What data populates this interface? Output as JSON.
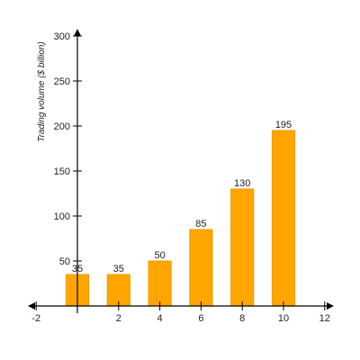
{
  "chart_data": {
    "type": "bar",
    "title": "",
    "xlabel": "",
    "ylabel": "Trading volume ($ billion)",
    "x": [
      0,
      2,
      4,
      6,
      8,
      10
    ],
    "values": [
      35,
      35,
      50,
      85,
      130,
      195
    ],
    "bar_width": 1.1,
    "xlim": [
      -2,
      12
    ],
    "ylim": [
      0,
      300
    ],
    "x_ticks": [
      -2,
      2,
      4,
      6,
      8,
      10,
      12
    ],
    "y_ticks": [
      50,
      100,
      150,
      200,
      250,
      300
    ],
    "grid": false,
    "legend": "none",
    "bar_color": "#FFA500",
    "bar_edge_color": "#F59B00"
  }
}
